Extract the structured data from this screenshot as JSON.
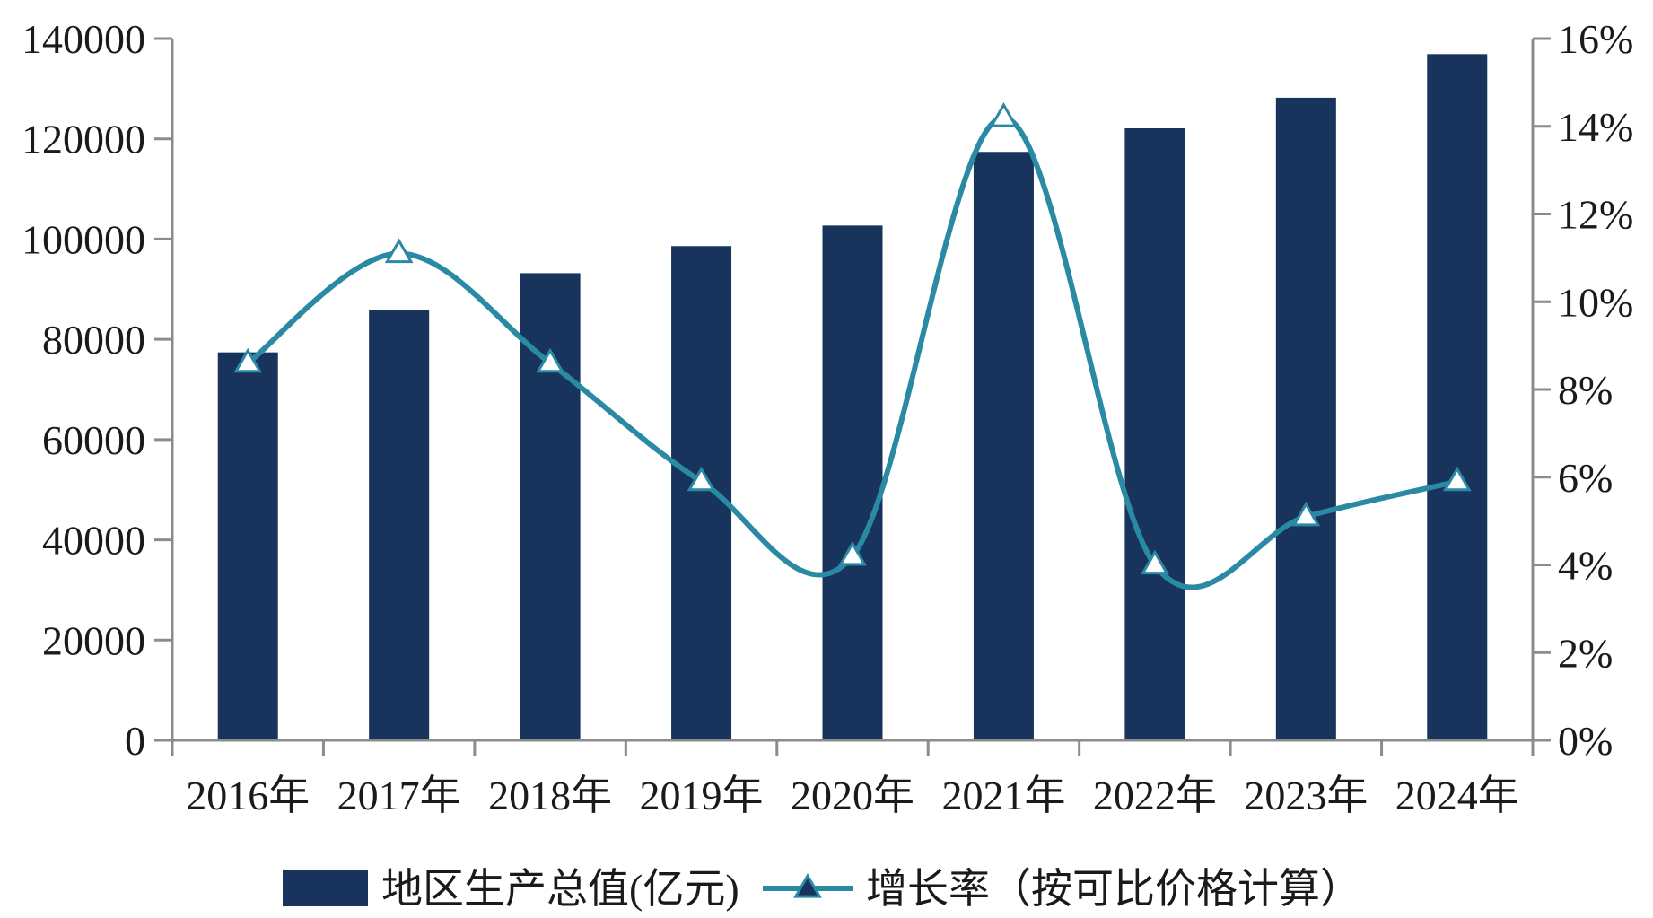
{
  "chart_data": {
    "type": "bar+line",
    "categories": [
      "2016年",
      "2017年",
      "2018年",
      "2019年",
      "2020年",
      "2021年",
      "2022年",
      "2023年",
      "2024年"
    ],
    "series": [
      {
        "name": "地区生产总值(亿元)",
        "type": "bar",
        "axis": "left",
        "color": "#18345c",
        "values": [
          77400,
          85800,
          93200,
          98600,
          102700,
          117400,
          122100,
          128200,
          136900
        ]
      },
      {
        "name": "增长率（按可比价格计算）",
        "type": "line",
        "axis": "right",
        "color": "#2a8aa3",
        "marker": "triangle",
        "values": [
          8.6,
          11.1,
          8.6,
          5.9,
          4.2,
          14.2,
          4.0,
          5.1,
          5.9
        ]
      }
    ],
    "y_left": {
      "range": [
        0,
        140000
      ],
      "ticks": [
        "0",
        "20000",
        "40000",
        "60000",
        "80000",
        "100000",
        "120000",
        "140000"
      ]
    },
    "y_right": {
      "range": [
        0,
        16
      ],
      "ticks": [
        "0%",
        "2%",
        "4%",
        "6%",
        "8%",
        "10%",
        "12%",
        "14%",
        "16%"
      ]
    },
    "legend_position": "bottom",
    "grid": false
  }
}
